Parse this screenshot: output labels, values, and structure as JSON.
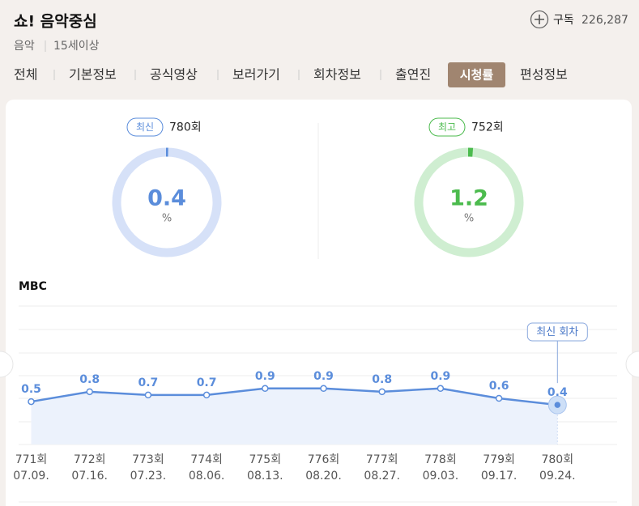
{
  "header": {
    "title": "쇼! 음악중심",
    "genre": "음악",
    "rating": "15세이상",
    "subscribe": "구독",
    "subscribers": "226,287"
  },
  "tabs": [
    "전체",
    "기본정보",
    "공식영상",
    "보러가기",
    "회차정보",
    "출연진",
    "시청률",
    "편성정보"
  ],
  "active_tab": 6,
  "gauges": [
    {
      "badge": "최신",
      "episode": "780회",
      "value": 0.4,
      "unit": "%",
      "color": "#5b8ddb",
      "track": "#d6e1f8"
    },
    {
      "badge": "최고",
      "episode": "752회",
      "value": 1.2,
      "unit": "%",
      "color": "#4cbb4e",
      "track": "#cfeed1"
    }
  ],
  "chart_data": {
    "type": "line",
    "title": "MBC",
    "categories": [
      "771회",
      "772회",
      "773회",
      "774회",
      "775회",
      "776회",
      "777회",
      "778회",
      "779회",
      "780회"
    ],
    "dates": [
      "07.09.",
      "07.16.",
      "07.23.",
      "08.06.",
      "08.13.",
      "08.20.",
      "08.27.",
      "09.03.",
      "09.17.",
      "09.24."
    ],
    "values": [
      0.5,
      0.8,
      0.7,
      0.7,
      0.9,
      0.9,
      0.8,
      0.9,
      0.6,
      0.4
    ],
    "color": "#5b8ddb",
    "annotation": "최신 회차",
    "ylim": [
      -0.8,
      3.4
    ]
  }
}
